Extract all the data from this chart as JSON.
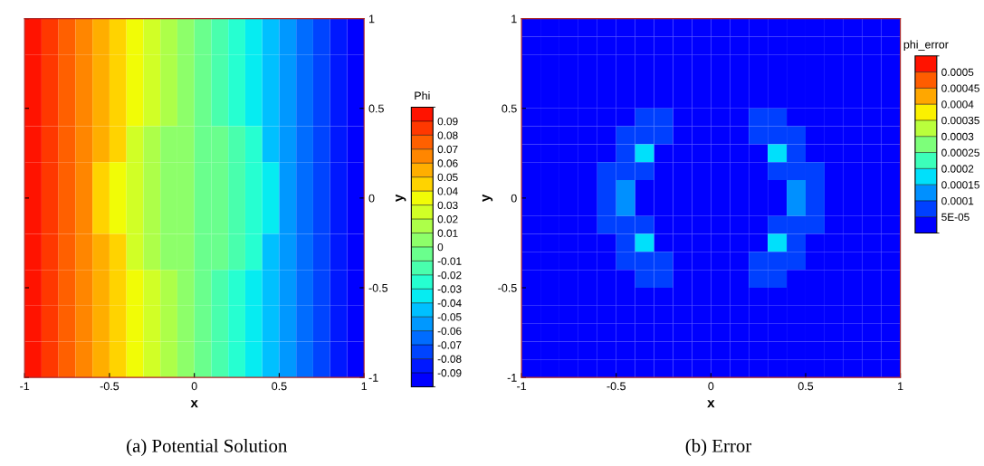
{
  "chart_data": [
    {
      "type": "heatmap",
      "title": "(a) Potential Solution",
      "xlabel": "x",
      "ylabel": "y",
      "clabel": "Phi",
      "x": [
        -0.95,
        -0.85,
        -0.75,
        -0.65,
        -0.55,
        -0.45,
        -0.35,
        -0.25,
        -0.15,
        -0.05,
        0.05,
        0.15,
        0.25,
        0.35,
        0.45,
        0.55,
        0.65,
        0.75,
        0.85,
        0.95
      ],
      "y": [
        0.9,
        0.7,
        0.5,
        0.3,
        0.1,
        -0.1,
        -0.3,
        -0.5,
        -0.7,
        -0.9
      ],
      "xlim": [
        -1,
        1
      ],
      "ylim": [
        -1,
        1
      ],
      "xticks": [
        -1,
        -0.5,
        0,
        0.5,
        1
      ],
      "yticks": [
        -1,
        -0.5,
        0,
        0.5,
        1
      ],
      "clim": [
        -0.1,
        0.1
      ],
      "cticks": [
        -0.09,
        -0.08,
        -0.07,
        -0.06,
        -0.05,
        -0.04,
        -0.03,
        -0.02,
        -0.01,
        0,
        0.01,
        0.02,
        0.03,
        0.04,
        0.05,
        0.06,
        0.07,
        0.08,
        0.09
      ],
      "cells": [
        [
          0.095,
          0.085,
          0.075,
          0.065,
          0.055,
          0.045,
          0.035,
          0.025,
          0.015,
          0.005,
          -0.005,
          -0.015,
          -0.025,
          -0.035,
          -0.045,
          -0.055,
          -0.065,
          -0.075,
          -0.085,
          -0.095
        ],
        [
          0.095,
          0.085,
          0.075,
          0.065,
          0.055,
          0.045,
          0.035,
          0.025,
          0.015,
          0.005,
          -0.005,
          -0.015,
          -0.025,
          -0.035,
          -0.045,
          -0.055,
          -0.065,
          -0.075,
          -0.085,
          -0.095
        ],
        [
          0.095,
          0.085,
          0.075,
          0.065,
          0.055,
          0.045,
          0.035,
          0.025,
          0.015,
          0.005,
          -0.005,
          -0.015,
          -0.025,
          -0.035,
          -0.045,
          -0.055,
          -0.065,
          -0.075,
          -0.085,
          -0.095
        ],
        [
          0.095,
          0.085,
          0.075,
          0.065,
          0.055,
          0.045,
          0.025,
          0.015,
          0.005,
          0.005,
          -0.005,
          -0.005,
          -0.015,
          -0.025,
          -0.045,
          -0.055,
          -0.065,
          -0.075,
          -0.085,
          -0.095
        ],
        [
          0.095,
          0.085,
          0.075,
          0.065,
          0.045,
          0.035,
          0.025,
          0.015,
          0.005,
          0.005,
          -0.005,
          -0.005,
          -0.015,
          -0.025,
          -0.035,
          -0.055,
          -0.065,
          -0.075,
          -0.085,
          -0.095
        ],
        [
          0.095,
          0.085,
          0.075,
          0.065,
          0.045,
          0.035,
          0.025,
          0.015,
          0.005,
          0.005,
          -0.005,
          -0.005,
          -0.015,
          -0.025,
          -0.035,
          -0.055,
          -0.065,
          -0.075,
          -0.085,
          -0.095
        ],
        [
          0.095,
          0.085,
          0.075,
          0.065,
          0.055,
          0.045,
          0.025,
          0.015,
          0.005,
          0.005,
          -0.005,
          -0.005,
          -0.015,
          -0.025,
          -0.045,
          -0.055,
          -0.065,
          -0.075,
          -0.085,
          -0.095
        ],
        [
          0.095,
          0.085,
          0.075,
          0.065,
          0.055,
          0.045,
          0.035,
          0.025,
          0.015,
          0.005,
          -0.005,
          -0.015,
          -0.025,
          -0.035,
          -0.045,
          -0.055,
          -0.065,
          -0.075,
          -0.085,
          -0.095
        ],
        [
          0.095,
          0.085,
          0.075,
          0.065,
          0.055,
          0.045,
          0.035,
          0.025,
          0.015,
          0.005,
          -0.005,
          -0.015,
          -0.025,
          -0.035,
          -0.045,
          -0.055,
          -0.065,
          -0.075,
          -0.085,
          -0.095
        ],
        [
          0.095,
          0.085,
          0.075,
          0.065,
          0.055,
          0.045,
          0.035,
          0.025,
          0.015,
          0.005,
          -0.005,
          -0.015,
          -0.025,
          -0.035,
          -0.045,
          -0.055,
          -0.065,
          -0.075,
          -0.085,
          -0.095
        ]
      ]
    },
    {
      "type": "heatmap",
      "title": "(b) Error",
      "xlabel": "x",
      "ylabel": "y",
      "clabel": "phi_error",
      "x": [
        -0.95,
        -0.85,
        -0.75,
        -0.65,
        -0.55,
        -0.45,
        -0.35,
        -0.25,
        -0.15,
        -0.05,
        0.05,
        0.15,
        0.25,
        0.35,
        0.45,
        0.55,
        0.65,
        0.75,
        0.85,
        0.95
      ],
      "y": [
        0.95,
        0.85,
        0.75,
        0.65,
        0.55,
        0.45,
        0.35,
        0.25,
        0.15,
        0.05,
        -0.05,
        -0.15,
        -0.25,
        -0.35,
        -0.45,
        -0.55,
        -0.65,
        -0.75,
        -0.85,
        -0.95
      ],
      "xlim": [
        -1,
        1
      ],
      "ylim": [
        -1,
        1
      ],
      "xticks": [
        -1,
        -0.5,
        0,
        0.5,
        1
      ],
      "yticks": [
        -1,
        -0.5,
        0,
        0.5,
        1
      ],
      "clim": [
        0,
        0.00055
      ],
      "cticks": [
        {
          "value": 5e-05,
          "label": "5E-05"
        },
        0.0001,
        0.00015,
        0.0002,
        0.00025,
        0.0003,
        0.00035,
        0.0004,
        0.00045,
        0.0005
      ],
      "cells": [
        [
          3e-05,
          3e-05,
          3e-05,
          3e-05,
          3e-05,
          3e-05,
          3e-05,
          3e-05,
          3e-05,
          3e-05,
          3e-05,
          3e-05,
          3e-05,
          3e-05,
          3e-05,
          3e-05,
          3e-05,
          3e-05,
          3e-05,
          3e-05
        ],
        [
          3e-05,
          3e-05,
          3e-05,
          3e-05,
          3e-05,
          3e-05,
          3e-05,
          3e-05,
          3e-05,
          3e-05,
          3e-05,
          3e-05,
          3e-05,
          3e-05,
          3e-05,
          3e-05,
          3e-05,
          3e-05,
          3e-05,
          3e-05
        ],
        [
          3e-05,
          3e-05,
          3e-05,
          3e-05,
          3e-05,
          3e-05,
          3e-05,
          3e-05,
          3e-05,
          3e-05,
          3e-05,
          3e-05,
          3e-05,
          3e-05,
          3e-05,
          3e-05,
          3e-05,
          3e-05,
          3e-05,
          3e-05
        ],
        [
          3e-05,
          3e-05,
          3e-05,
          3e-05,
          3e-05,
          3e-05,
          3e-05,
          3e-05,
          3e-05,
          3e-05,
          3e-05,
          3e-05,
          3e-05,
          3e-05,
          3e-05,
          3e-05,
          3e-05,
          3e-05,
          3e-05,
          3e-05
        ],
        [
          3e-05,
          3e-05,
          3e-05,
          3e-05,
          3e-05,
          3e-05,
          3e-05,
          3e-05,
          3e-05,
          3e-05,
          3e-05,
          3e-05,
          3e-05,
          3e-05,
          3e-05,
          3e-05,
          3e-05,
          3e-05,
          3e-05,
          3e-05
        ],
        [
          3e-05,
          3e-05,
          3e-05,
          3e-05,
          3e-05,
          3e-05,
          7e-05,
          7e-05,
          3e-05,
          3e-05,
          3e-05,
          3e-05,
          7e-05,
          7e-05,
          3e-05,
          3e-05,
          3e-05,
          3e-05,
          3e-05,
          3e-05
        ],
        [
          3e-05,
          3e-05,
          3e-05,
          3e-05,
          3e-05,
          7e-05,
          7e-05,
          7e-05,
          3e-05,
          3e-05,
          3e-05,
          3e-05,
          7e-05,
          7e-05,
          7e-05,
          3e-05,
          3e-05,
          3e-05,
          3e-05,
          3e-05
        ],
        [
          3e-05,
          3e-05,
          3e-05,
          3e-05,
          3e-05,
          7e-05,
          0.00017,
          3e-05,
          3e-05,
          3e-05,
          3e-05,
          3e-05,
          3e-05,
          0.00017,
          7e-05,
          3e-05,
          3e-05,
          3e-05,
          3e-05,
          3e-05
        ],
        [
          3e-05,
          3e-05,
          3e-05,
          3e-05,
          7e-05,
          7e-05,
          7e-05,
          3e-05,
          3e-05,
          3e-05,
          3e-05,
          3e-05,
          3e-05,
          7e-05,
          7e-05,
          7e-05,
          3e-05,
          3e-05,
          3e-05,
          3e-05
        ],
        [
          3e-05,
          3e-05,
          3e-05,
          3e-05,
          7e-05,
          0.00012,
          3e-05,
          3e-05,
          3e-05,
          3e-05,
          3e-05,
          3e-05,
          3e-05,
          3e-05,
          0.00012,
          7e-05,
          3e-05,
          3e-05,
          3e-05,
          3e-05
        ],
        [
          3e-05,
          3e-05,
          3e-05,
          3e-05,
          7e-05,
          0.00012,
          3e-05,
          3e-05,
          3e-05,
          3e-05,
          3e-05,
          3e-05,
          3e-05,
          3e-05,
          0.00012,
          7e-05,
          3e-05,
          3e-05,
          3e-05,
          3e-05
        ],
        [
          3e-05,
          3e-05,
          3e-05,
          3e-05,
          7e-05,
          7e-05,
          7e-05,
          3e-05,
          3e-05,
          3e-05,
          3e-05,
          3e-05,
          3e-05,
          7e-05,
          7e-05,
          7e-05,
          3e-05,
          3e-05,
          3e-05,
          3e-05
        ],
        [
          3e-05,
          3e-05,
          3e-05,
          3e-05,
          3e-05,
          7e-05,
          0.00017,
          3e-05,
          3e-05,
          3e-05,
          3e-05,
          3e-05,
          3e-05,
          0.00017,
          7e-05,
          3e-05,
          3e-05,
          3e-05,
          3e-05,
          3e-05
        ],
        [
          3e-05,
          3e-05,
          3e-05,
          3e-05,
          3e-05,
          7e-05,
          7e-05,
          7e-05,
          3e-05,
          3e-05,
          3e-05,
          3e-05,
          7e-05,
          7e-05,
          7e-05,
          3e-05,
          3e-05,
          3e-05,
          3e-05,
          3e-05
        ],
        [
          3e-05,
          3e-05,
          3e-05,
          3e-05,
          3e-05,
          3e-05,
          7e-05,
          7e-05,
          3e-05,
          3e-05,
          3e-05,
          3e-05,
          7e-05,
          7e-05,
          3e-05,
          3e-05,
          3e-05,
          3e-05,
          3e-05,
          3e-05
        ],
        [
          3e-05,
          3e-05,
          3e-05,
          3e-05,
          3e-05,
          3e-05,
          3e-05,
          3e-05,
          3e-05,
          3e-05,
          3e-05,
          3e-05,
          3e-05,
          3e-05,
          3e-05,
          3e-05,
          3e-05,
          3e-05,
          3e-05,
          3e-05
        ],
        [
          3e-05,
          3e-05,
          3e-05,
          3e-05,
          3e-05,
          3e-05,
          3e-05,
          3e-05,
          3e-05,
          3e-05,
          3e-05,
          3e-05,
          3e-05,
          3e-05,
          3e-05,
          3e-05,
          3e-05,
          3e-05,
          3e-05,
          3e-05
        ],
        [
          3e-05,
          3e-05,
          3e-05,
          3e-05,
          3e-05,
          3e-05,
          3e-05,
          3e-05,
          3e-05,
          3e-05,
          3e-05,
          3e-05,
          3e-05,
          3e-05,
          3e-05,
          3e-05,
          3e-05,
          3e-05,
          3e-05,
          3e-05
        ],
        [
          3e-05,
          3e-05,
          3e-05,
          3e-05,
          3e-05,
          3e-05,
          3e-05,
          3e-05,
          3e-05,
          3e-05,
          3e-05,
          3e-05,
          3e-05,
          3e-05,
          3e-05,
          3e-05,
          3e-05,
          3e-05,
          3e-05,
          3e-05
        ],
        [
          3e-05,
          3e-05,
          3e-05,
          3e-05,
          3e-05,
          3e-05,
          3e-05,
          3e-05,
          3e-05,
          3e-05,
          3e-05,
          3e-05,
          3e-05,
          3e-05,
          3e-05,
          3e-05,
          3e-05,
          3e-05,
          3e-05,
          3e-05
        ]
      ]
    }
  ]
}
